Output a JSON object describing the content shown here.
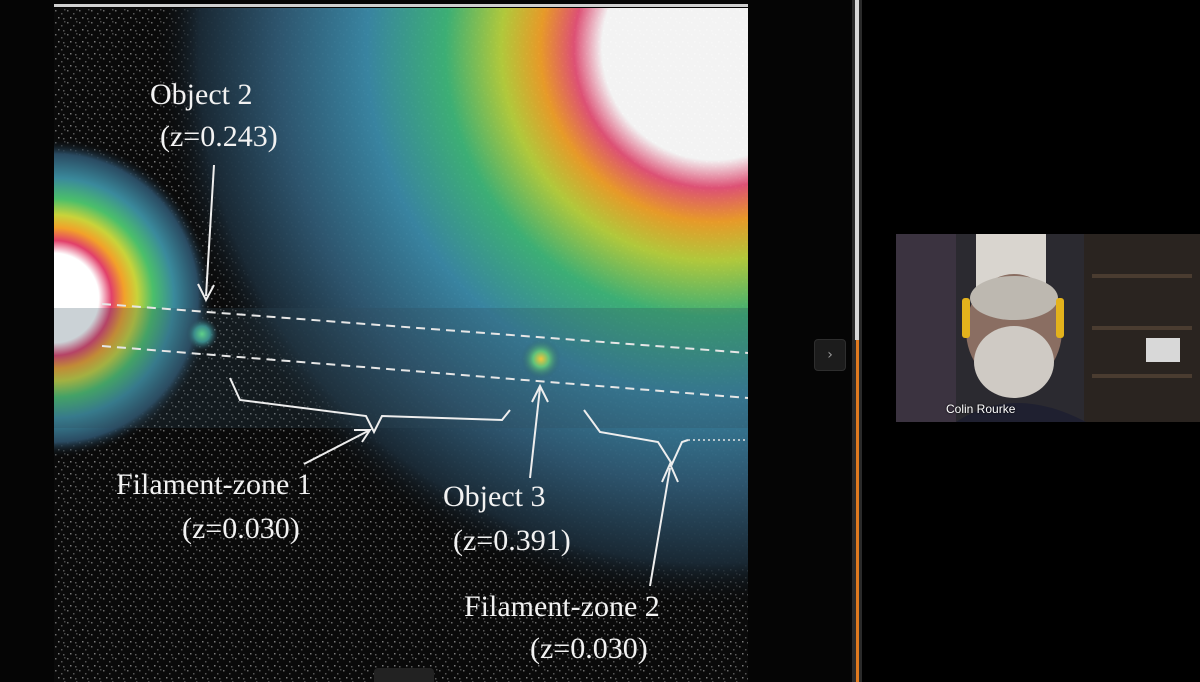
{
  "slide": {
    "annotations": {
      "object2_label": "Object 2",
      "object2_z": "(z=0.243)",
      "filament1_label": "Filament-zone 1",
      "filament1_z": "(z=0.030)",
      "object3_label": "Object 3",
      "object3_z": "(z=0.391)",
      "filament2_label": "Filament-zone 2",
      "filament2_z": "(z=0.030)"
    }
  },
  "participant": {
    "name": "Colin Rourke"
  },
  "controls": {
    "next_icon": "›"
  },
  "colors": {
    "background": "#000000",
    "annotation_text": "#f2f2f2",
    "scroll_accent": "#e07a1f"
  }
}
